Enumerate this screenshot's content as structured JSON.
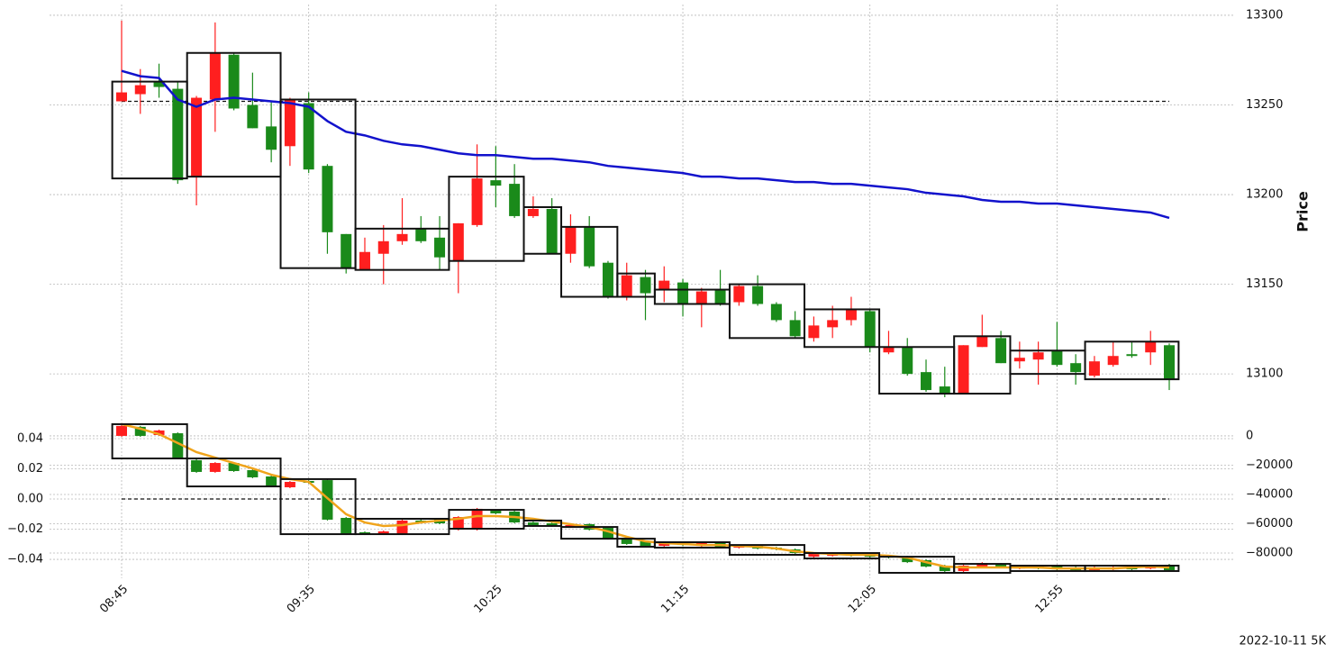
{
  "chart_data": [
    {
      "type": "candlestick",
      "ylabel": "Price",
      "up_color": "#ff1f1f",
      "down_color": "#1a8a1a",
      "open": [
        13252,
        13256,
        13263,
        13259,
        13210,
        13253,
        13278,
        13250,
        13238,
        13227,
        13251,
        13216,
        13178,
        13158,
        13167,
        13174,
        13181,
        13176,
        13163,
        13183,
        13208,
        13206,
        13188,
        13192,
        13167,
        13182,
        13162,
        13143,
        13154,
        13147,
        13151,
        13139,
        13147,
        13140,
        13149,
        13139,
        13130,
        13120,
        13126,
        13130,
        13135,
        13112,
        13115,
        13101,
        13093,
        13089,
        13115,
        13120,
        13107,
        13108,
        13113,
        13106,
        13099,
        13105,
        13111,
        13112,
        13116
      ],
      "high": [
        13297,
        13270,
        13273,
        13263,
        13255,
        13296,
        13279,
        13268,
        13252,
        13254,
        13257,
        13217,
        13178,
        13176,
        13183,
        13198,
        13188,
        13188,
        13184,
        13228,
        13227,
        13217,
        13199,
        13198,
        13189,
        13188,
        13163,
        13162,
        13158,
        13160,
        13153,
        13148,
        13158,
        13150,
        13155,
        13140,
        13135,
        13132,
        13138,
        13143,
        13136,
        13124,
        13120,
        13108,
        13104,
        13116,
        13133,
        13124,
        13118,
        13118,
        13129,
        13111,
        13110,
        13118,
        13118,
        13124,
        13117
      ],
      "low": [
        13252,
        13245,
        13254,
        13206,
        13194,
        13235,
        13247,
        13237,
        13218,
        13216,
        13212,
        13167,
        13156,
        13158,
        13150,
        13172,
        13173,
        13158,
        13145,
        13182,
        13193,
        13187,
        13187,
        13167,
        13162,
        13159,
        13142,
        13141,
        13130,
        13140,
        13132,
        13126,
        13138,
        13138,
        13138,
        13129,
        13120,
        13118,
        13120,
        13127,
        13112,
        13111,
        13099,
        13090,
        13087,
        13089,
        13115,
        13106,
        13103,
        13094,
        13104,
        13094,
        13098,
        13104,
        13109,
        13105,
        13091
      ],
      "close": [
        13257,
        13261,
        13260,
        13208,
        13254,
        13279,
        13248,
        13237,
        13225,
        13253,
        13214,
        13179,
        13159,
        13168,
        13174,
        13178,
        13174,
        13165,
        13184,
        13209,
        13205,
        13188,
        13192,
        13167,
        13182,
        13160,
        13143,
        13155,
        13145,
        13152,
        13139,
        13146,
        13139,
        13149,
        13139,
        13130,
        13121,
        13127,
        13130,
        13136,
        13115,
        13115,
        13100,
        13091,
        13089,
        13116,
        13121,
        13106,
        13109,
        13112,
        13105,
        13101,
        13107,
        13110,
        13110,
        13118,
        13097
      ],
      "lines": [
        {
          "color": "#1212cc",
          "values": [
            13269,
            13266,
            13265,
            13253,
            13249,
            13253,
            13254,
            13253,
            13252,
            13251,
            13249,
            13241,
            13235,
            13233,
            13230,
            13228,
            13227,
            13225,
            13223,
            13222,
            13222,
            13221,
            13220,
            13220,
            13219,
            13218,
            13216,
            13215,
            13214,
            13213,
            13212,
            13210,
            13210,
            13209,
            13209,
            13208,
            13207,
            13207,
            13206,
            13206,
            13205,
            13204,
            13203,
            13201,
            13200,
            13199,
            13197,
            13196,
            13196,
            13195,
            13195,
            13194,
            13193,
            13192,
            13191,
            13190,
            13187
          ]
        }
      ],
      "hline": {
        "value": 13252
      },
      "boxes": [
        {
          "start": 0,
          "end": 3,
          "high": 13263,
          "low": 13209
        },
        {
          "start": 4,
          "end": 8,
          "high": 13279,
          "low": 13210
        },
        {
          "start": 9,
          "end": 12,
          "high": 13253,
          "low": 13159
        },
        {
          "start": 13,
          "end": 17,
          "high": 13181,
          "low": 13158
        },
        {
          "start": 18,
          "end": 21,
          "high": 13210,
          "low": 13163
        },
        {
          "start": 22,
          "end": 23,
          "high": 13193,
          "low": 13167
        },
        {
          "start": 24,
          "end": 26,
          "high": 13182,
          "low": 13143
        },
        {
          "start": 27,
          "end": 28,
          "high": 13156,
          "low": 13143
        },
        {
          "start": 29,
          "end": 32,
          "high": 13147,
          "low": 13139
        },
        {
          "start": 33,
          "end": 36,
          "high": 13150,
          "low": 13120
        },
        {
          "start": 37,
          "end": 40,
          "high": 13136,
          "low": 13115
        },
        {
          "start": 41,
          "end": 44,
          "high": 13115,
          "low": 13089
        },
        {
          "start": 45,
          "end": 47,
          "high": 13121,
          "low": 13089
        },
        {
          "start": 48,
          "end": 51,
          "high": 13113,
          "low": 13100
        },
        {
          "start": 52,
          "end": 56,
          "high": 13118,
          "low": 13097
        }
      ],
      "ylim": [
        13085,
        13306
      ],
      "yticks": [
        13100,
        13150,
        13200,
        13250,
        13300
      ],
      "grid": true
    },
    {
      "type": "candlestick",
      "up_color": "#ff1f1f",
      "down_color": "#1a8a1a",
      "categories": [
        "08:45",
        null,
        null,
        null,
        null,
        null,
        null,
        null,
        null,
        null,
        "09:35",
        null,
        null,
        null,
        null,
        null,
        null,
        null,
        null,
        null,
        "10:25",
        null,
        null,
        null,
        null,
        null,
        null,
        null,
        null,
        null,
        "11:15",
        null,
        null,
        null,
        null,
        null,
        null,
        null,
        null,
        null,
        "12:05",
        null,
        null,
        null,
        null,
        null,
        null,
        null,
        null,
        null,
        "12:55",
        null,
        null,
        null,
        null,
        null,
        null
      ],
      "open": [
        0,
        6200,
        600,
        1800,
        -16600,
        -24600,
        -18500,
        -23400,
        -27700,
        -35100,
        -30800,
        -30200,
        -56000,
        -65800,
        -67100,
        -67100,
        -57800,
        -56600,
        -64000,
        -64000,
        -51100,
        -51700,
        -59100,
        -59700,
        -62200,
        -60300,
        -62800,
        -69500,
        -72000,
        -75100,
        -72600,
        -75100,
        -73200,
        -76300,
        -75100,
        -76300,
        -77500,
        -82500,
        -81800,
        -80000,
        -81200,
        -81800,
        -82500,
        -84900,
        -88600,
        -92300,
        -89200,
        -87400,
        -90500,
        -89200,
        -89200,
        -89800,
        -91700,
        -91100,
        -89800,
        -90500,
        -88000
      ],
      "high": [
        7400,
        6800,
        4300,
        2400,
        -16000,
        -17900,
        -17900,
        -22800,
        -27100,
        -30800,
        -30200,
        -29600,
        -55400,
        -65200,
        -64600,
        -57200,
        -57200,
        -56000,
        -54800,
        -49200,
        -50500,
        -51100,
        -58500,
        -59100,
        -60300,
        -59700,
        -62200,
        -68900,
        -71400,
        -72600,
        -72000,
        -72600,
        -72600,
        -74500,
        -74500,
        -75700,
        -76900,
        -80000,
        -79400,
        -79400,
        -80600,
        -81200,
        -81900,
        -84300,
        -88000,
        -88000,
        -86200,
        -86800,
        -88000,
        -88600,
        -88600,
        -89200,
        -89200,
        -89200,
        -89200,
        -88000,
        -87400
      ],
      "low": [
        -600,
        -600,
        0,
        -16000,
        -25200,
        -25200,
        -24600,
        -28900,
        -35100,
        -35700,
        -32600,
        -57800,
        -67700,
        -67700,
        -67700,
        -67700,
        -59700,
        -60300,
        -64600,
        -64600,
        -53500,
        -59700,
        -62100,
        -62100,
        -62800,
        -64600,
        -70800,
        -74400,
        -75700,
        -75700,
        -75100,
        -75700,
        -76900,
        -76900,
        -77500,
        -78100,
        -80600,
        -83100,
        -82400,
        -82400,
        -83100,
        -83700,
        -86800,
        -89800,
        -92900,
        -92900,
        -89800,
        -90400,
        -91100,
        -91100,
        -91700,
        -92300,
        -92300,
        -91700,
        -91700,
        -91100,
        -92300
      ],
      "close": [
        6800,
        0,
        3700,
        -15400,
        -24600,
        -18500,
        -24000,
        -28300,
        -34500,
        -31400,
        -32000,
        -57200,
        -67100,
        -67100,
        -65200,
        -57800,
        -59100,
        -59700,
        -55400,
        -49800,
        -52900,
        -59100,
        -61500,
        -61500,
        -60900,
        -64000,
        -70200,
        -73800,
        -75100,
        -73200,
        -74500,
        -73200,
        -76300,
        -75100,
        -76900,
        -77500,
        -80000,
        -80600,
        -80000,
        -81800,
        -82500,
        -83100,
        -86200,
        -89200,
        -92300,
        -88600,
        -86800,
        -89800,
        -88600,
        -90500,
        -91100,
        -91700,
        -89800,
        -89800,
        -91100,
        -88600,
        -91700
      ],
      "lines": [
        {
          "color": "#f0a41c",
          "values": [
            8000,
            4900,
            1200,
            -4900,
            -11100,
            -14800,
            -18500,
            -22200,
            -26500,
            -29500,
            -31400,
            -42500,
            -53500,
            -59100,
            -61500,
            -60900,
            -59100,
            -57800,
            -56600,
            -54800,
            -54800,
            -55400,
            -56600,
            -58500,
            -60300,
            -62200,
            -65200,
            -68900,
            -72000,
            -73200,
            -73800,
            -74500,
            -74500,
            -75100,
            -75700,
            -76900,
            -78800,
            -80000,
            -80600,
            -81200,
            -81200,
            -81800,
            -83100,
            -86200,
            -89200,
            -89800,
            -89800,
            -89800,
            -89800,
            -89800,
            -90500,
            -90500,
            -90500,
            -90500,
            -89800,
            -89200,
            -89800
          ]
        }
      ],
      "hline": {
        "value": 0,
        "axis": "y2"
      },
      "boxes": [
        {
          "start": 0,
          "end": 3,
          "high": 8000,
          "low": -15400
        },
        {
          "start": 4,
          "end": 8,
          "high": -15400,
          "low": -34500
        },
        {
          "start": 9,
          "end": 12,
          "high": -29500,
          "low": -67100
        },
        {
          "start": 13,
          "end": 17,
          "high": -56600,
          "low": -67100
        },
        {
          "start": 18,
          "end": 21,
          "high": -50500,
          "low": -63400
        },
        {
          "start": 22,
          "end": 23,
          "high": -57800,
          "low": -61500
        },
        {
          "start": 24,
          "end": 26,
          "high": -62200,
          "low": -70200
        },
        {
          "start": 27,
          "end": 28,
          "high": -70200,
          "low": -75700
        },
        {
          "start": 29,
          "end": 32,
          "high": -72600,
          "low": -76300
        },
        {
          "start": 33,
          "end": 36,
          "high": -74500,
          "low": -81200
        },
        {
          "start": 37,
          "end": 40,
          "high": -80000,
          "low": -83700
        },
        {
          "start": 41,
          "end": 44,
          "high": -82500,
          "low": -93500
        },
        {
          "start": 45,
          "end": 47,
          "high": -87400,
          "low": -93500
        },
        {
          "start": 48,
          "end": 51,
          "high": -88600,
          "low": -92300
        },
        {
          "start": 52,
          "end": 56,
          "high": -88600,
          "low": -92300
        }
      ],
      "ylim": [
        -97200,
        13500
      ],
      "yticks": [
        {
          "value": -80000,
          "label": "−80000"
        },
        {
          "value": -60000,
          "label": "−60000"
        },
        {
          "value": -40000,
          "label": "−40000"
        },
        {
          "value": -20000,
          "label": "−20000"
        },
        0
      ],
      "y2lim": [
        -0.0525,
        0.0549
      ],
      "y2ticks": [
        {
          "value": -0.04,
          "label": "−0.04"
        },
        {
          "value": -0.02,
          "label": "−0.02"
        },
        {
          "value": 0,
          "label": "0.00"
        },
        0.02,
        0.04
      ],
      "grid": true
    }
  ],
  "footer": "2022-10-11 5K"
}
